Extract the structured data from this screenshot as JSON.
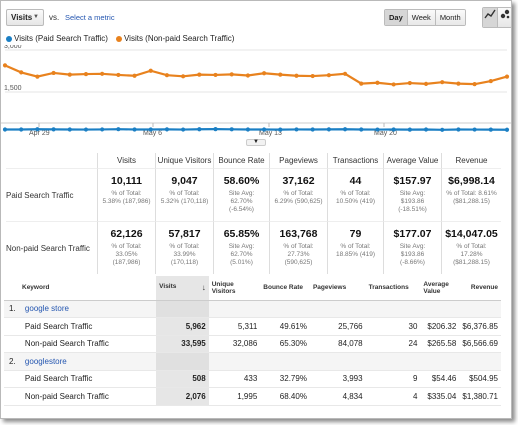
{
  "toolbar": {
    "metric": "Visits",
    "vs": "vs.",
    "select_metric": "Select a metric",
    "periods": [
      "Day",
      "Week",
      "Month"
    ]
  },
  "legend": [
    {
      "name": "Visits (Paid Search Traffic)",
      "color": "#1b7fc4"
    },
    {
      "name": "Visits (Non-paid Search Traffic)",
      "color": "#e8821e"
    }
  ],
  "chart_data": {
    "type": "line",
    "yticks": [
      "3,000",
      "1,500"
    ],
    "ylim": [
      0,
      3000
    ],
    "xticks": [
      "Apr 29",
      "May 6",
      "May 13",
      "May 20"
    ],
    "series": [
      {
        "name": "Visits (Paid Search Traffic)",
        "color": "#1b7fc4",
        "values": [
          160,
          162,
          170,
          165,
          160,
          158,
          163,
          172,
          162,
          160,
          165,
          158,
          170,
          175,
          168,
          162,
          160,
          155,
          163,
          160,
          165,
          170,
          162,
          158,
          160,
          155,
          160,
          150,
          162,
          158,
          155,
          152
        ]
      },
      {
        "name": "Visits (Non-paid Search Traffic)",
        "color": "#e8821e",
        "values": [
          2450,
          2200,
          2050,
          2180,
          2120,
          2140,
          2150,
          2110,
          2080,
          2260,
          2100,
          2060,
          2120,
          2110,
          2130,
          2090,
          2170,
          2120,
          2080,
          2070,
          2100,
          2150,
          1800,
          1830,
          1770,
          1820,
          1790,
          1850,
          1800,
          1780,
          1890,
          2050
        ]
      }
    ]
  },
  "scorecard": {
    "headers": [
      "Visits",
      "Unique Visitors",
      "Bounce Rate",
      "Pageviews",
      "Transactions",
      "Average Value",
      "Revenue"
    ],
    "rows": [
      {
        "label": "Paid Search Traffic",
        "cells": [
          {
            "value": "10,111",
            "l1": "% of Total:",
            "l2": "5.38% (187,986)",
            "l3": ""
          },
          {
            "value": "9,047",
            "l1": "% of Total:",
            "l2": "5.32% (170,118)",
            "l3": ""
          },
          {
            "value": "58.60%",
            "l1": "Site Avg:",
            "l2": "62.70%",
            "l3": "(-6.54%)"
          },
          {
            "value": "37,162",
            "l1": "% of Total:",
            "l2": "6.29% (590,625)",
            "l3": ""
          },
          {
            "value": "44",
            "l1": "% of Total:",
            "l2": "10.50% (419)",
            "l3": ""
          },
          {
            "value": "$157.97",
            "l1": "Site Avg:",
            "l2": "$193.86",
            "l3": "(-18.51%)"
          },
          {
            "value": "$6,998.14",
            "l1": "% of Total: 8.61%",
            "l2": "($81,288.15)",
            "l3": ""
          }
        ]
      },
      {
        "label": "Non-paid Search Traffic",
        "cells": [
          {
            "value": "62,126",
            "l1": "% of Total:",
            "l2": "33.05%",
            "l3": "(187,986)"
          },
          {
            "value": "57,817",
            "l1": "% of Total:",
            "l2": "33.99%",
            "l3": "(170,118)"
          },
          {
            "value": "65.85%",
            "l1": "Site Avg:",
            "l2": "62.70%",
            "l3": "(5.01%)"
          },
          {
            "value": "163,768",
            "l1": "% of Total:",
            "l2": "27.73%",
            "l3": "(590,625)"
          },
          {
            "value": "79",
            "l1": "% of Total:",
            "l2": "18.85% (419)",
            "l3": ""
          },
          {
            "value": "$177.07",
            "l1": "Site Avg:",
            "l2": "$193.86",
            "l3": "(-8.66%)"
          },
          {
            "value": "$14,047.05",
            "l1": "% of Total:",
            "l2": "17.28%",
            "l3": "($81,288.15)"
          }
        ]
      }
    ]
  },
  "table": {
    "headers": {
      "keyword": "Keyword",
      "visits": "Visits",
      "unique": "Unique Visitors",
      "bounce": "Bounce Rate",
      "pageviews": "Pageviews",
      "transactions": "Transactions",
      "avg": "Average Value",
      "revenue": "Revenue"
    },
    "groups": [
      {
        "index": "1.",
        "keyword": "google store",
        "rows": [
          {
            "segment": "Paid Search Traffic",
            "visits": "5,962",
            "unique": "5,311",
            "bounce": "49.61%",
            "pageviews": "25,766",
            "transactions": "30",
            "avg": "$206.32",
            "revenue": "$6,376.85"
          },
          {
            "segment": "Non-paid Search Traffic",
            "visits": "33,595",
            "unique": "32,086",
            "bounce": "65.30%",
            "pageviews": "84,078",
            "transactions": "24",
            "avg": "$265.58",
            "revenue": "$6,566.69"
          }
        ]
      },
      {
        "index": "2.",
        "keyword": "googlestore",
        "rows": [
          {
            "segment": "Paid Search Traffic",
            "visits": "508",
            "unique": "433",
            "bounce": "32.79%",
            "pageviews": "3,993",
            "transactions": "9",
            "avg": "$54.46",
            "revenue": "$504.95"
          },
          {
            "segment": "Non-paid Search Traffic",
            "visits": "2,076",
            "unique": "1,995",
            "bounce": "68.40%",
            "pageviews": "4,834",
            "transactions": "4",
            "avg": "$335.04",
            "revenue": "$1,380.71"
          }
        ]
      }
    ]
  }
}
